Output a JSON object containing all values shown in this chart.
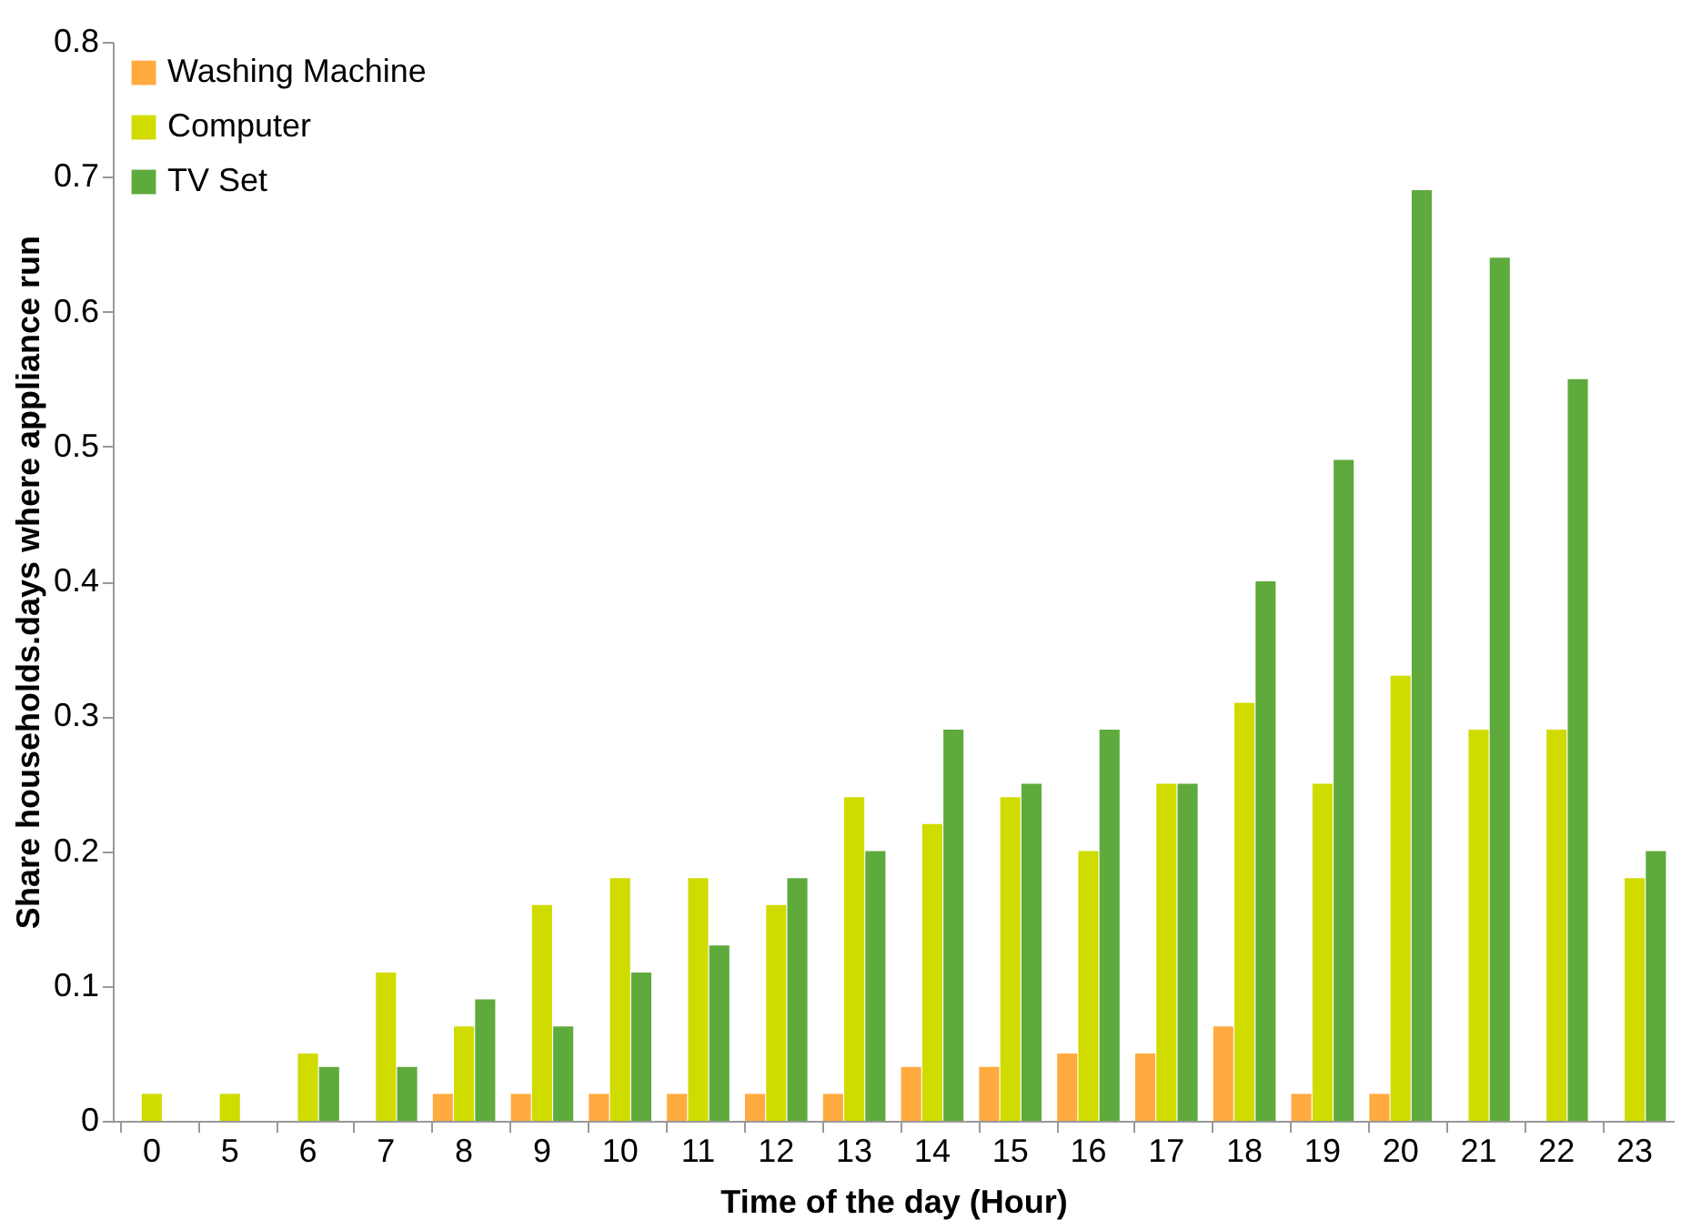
{
  "chart_data": {
    "type": "bar",
    "xlabel": "Time of the day (Hour)",
    "ylabel": "Share households.days where appliance run",
    "categories": [
      "0",
      "5",
      "6",
      "7",
      "8",
      "9",
      "10",
      "11",
      "12",
      "13",
      "14",
      "15",
      "16",
      "17",
      "18",
      "19",
      "20",
      "21",
      "22",
      "23"
    ],
    "series": [
      {
        "name": "Washing Machine",
        "color": "#ffab40",
        "values": [
          0,
          0,
          0,
          0,
          0.02,
          0.02,
          0.02,
          0.02,
          0.02,
          0.02,
          0.04,
          0.04,
          0.05,
          0.05,
          0.07,
          0.02,
          0.02,
          0,
          0,
          0
        ]
      },
      {
        "name": "Computer",
        "color": "#d0db00",
        "values": [
          0.02,
          0.02,
          0.05,
          0.11,
          0.07,
          0.16,
          0.18,
          0.18,
          0.16,
          0.24,
          0.22,
          0.24,
          0.2,
          0.25,
          0.31,
          0.25,
          0.33,
          0.29,
          0.29,
          0.18
        ]
      },
      {
        "name": "TV Set",
        "color": "#5faa3c",
        "values": [
          0,
          0,
          0.04,
          0.04,
          0.09,
          0.07,
          0.11,
          0.13,
          0.18,
          0.2,
          0.29,
          0.25,
          0.29,
          0.25,
          0.4,
          0.49,
          0.69,
          0.64,
          0.55,
          0.2
        ]
      }
    ],
    "ylim": [
      0,
      0.8
    ],
    "yticks": [
      0,
      0.1,
      0.2,
      0.3,
      0.4,
      0.5,
      0.6,
      0.7,
      0.8
    ],
    "grid": false,
    "legend": "top left"
  }
}
